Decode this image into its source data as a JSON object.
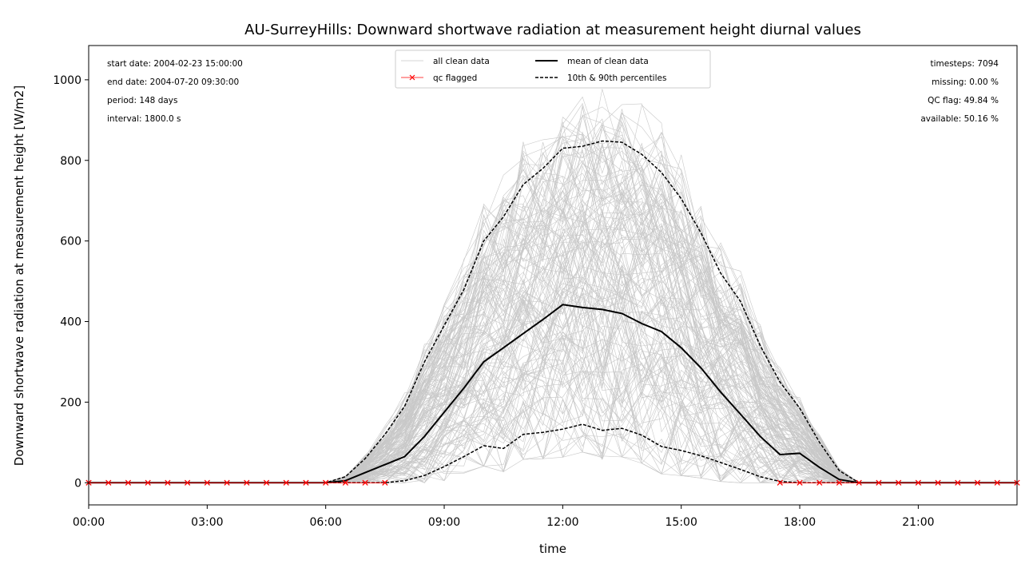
{
  "chart_data": {
    "type": "line",
    "title": "AU-SurreyHills: Downward shortwave radiation at measurement height diurnal values",
    "xlabel": "time",
    "ylabel": "Downward shortwave radiation at measurement height [W/m2]",
    "xlim": [
      0,
      23.5
    ],
    "ylim": [
      -55,
      1085
    ],
    "x_ticks": [
      0,
      3,
      6,
      9,
      12,
      15,
      18,
      21
    ],
    "x_tick_labels": [
      "00:00",
      "03:00",
      "06:00",
      "09:00",
      "12:00",
      "15:00",
      "18:00",
      "21:00"
    ],
    "y_ticks": [
      0,
      200,
      400,
      600,
      800,
      1000
    ],
    "y_tick_labels": [
      "0",
      "200",
      "400",
      "600",
      "800",
      "1000"
    ],
    "x": [
      0,
      0.5,
      1,
      1.5,
      2,
      2.5,
      3,
      3.5,
      4,
      4.5,
      5,
      5.5,
      6,
      6.5,
      7,
      7.5,
      8,
      8.5,
      9,
      9.5,
      10,
      10.5,
      11,
      11.5,
      12,
      12.5,
      13,
      13.5,
      14,
      14.5,
      15,
      15.5,
      16,
      16.5,
      17,
      17.5,
      18,
      18.5,
      19,
      19.5,
      20,
      20.5,
      21,
      21.5,
      22,
      22.5,
      23,
      23.5
    ],
    "series": [
      {
        "name": "mean of clean data",
        "color": "#000000",
        "style": "solid",
        "values": [
          0,
          0,
          0,
          0,
          0,
          0,
          0,
          0,
          0,
          0,
          0,
          0,
          0,
          5,
          25,
          45,
          65,
          115,
          175,
          235,
          300,
          335,
          370,
          405,
          442,
          435,
          430,
          420,
          395,
          375,
          335,
          285,
          225,
          170,
          115,
          70,
          73,
          38,
          8,
          0,
          0,
          0,
          0,
          0,
          0,
          0,
          0,
          0
        ]
      },
      {
        "name": "10th & 90th percentiles",
        "color": "#000000",
        "style": "dashed",
        "values": [
          0,
          0,
          0,
          0,
          0,
          0,
          0,
          0,
          0,
          0,
          0,
          0,
          0,
          0,
          0,
          0,
          5,
          18,
          40,
          65,
          92,
          85,
          120,
          125,
          133,
          145,
          130,
          135,
          118,
          90,
          80,
          67,
          50,
          33,
          15,
          3,
          0,
          0,
          0,
          0,
          0,
          0,
          0,
          0,
          0,
          0,
          0,
          0
        ]
      },
      {
        "name": "90th percentile",
        "color": "#000000",
        "style": "dashed",
        "values": [
          0,
          0,
          0,
          0,
          0,
          0,
          0,
          0,
          0,
          0,
          0,
          0,
          0,
          15,
          60,
          120,
          190,
          300,
          390,
          480,
          600,
          660,
          740,
          780,
          830,
          835,
          848,
          845,
          815,
          770,
          705,
          620,
          520,
          450,
          340,
          250,
          185,
          100,
          30,
          0,
          0,
          0,
          0,
          0,
          0,
          0,
          0,
          0
        ]
      },
      {
        "name": "qc flagged",
        "color": "#ff0000",
        "marker": "x",
        "x": [
          0,
          0.5,
          1,
          1.5,
          2,
          2.5,
          3,
          3.5,
          4,
          4.5,
          5,
          5.5,
          6,
          6.5,
          7,
          7.5,
          17.5,
          18,
          18.5,
          19,
          19.5,
          20,
          20.5,
          21,
          21.5,
          22,
          22.5,
          23,
          23.5
        ],
        "values": [
          0,
          0,
          0,
          0,
          0,
          0,
          0,
          0,
          0,
          0,
          0,
          0,
          0,
          0,
          0,
          0,
          0,
          0,
          0,
          0,
          0,
          0,
          0,
          0,
          0,
          0,
          0,
          0,
          0
        ]
      }
    ],
    "legend": {
      "placement": "top-center",
      "entries": [
        "all clean data",
        "qc flagged",
        "mean of clean data",
        "10th & 90th percentiles"
      ]
    },
    "background_series": {
      "name": "all clean data",
      "color": "#c8c8c8",
      "count": 148
    },
    "info_left": [
      "start date: 2004-02-23 15:00:00",
      "end date: 2004-07-20 09:30:00",
      "period: 148 days",
      "interval: 1800.0 s"
    ],
    "info_right": [
      "timesteps: 7094",
      "missing: 0.00 %",
      "QC flag: 49.84 %",
      "available: 50.16 %"
    ],
    "grid": false
  }
}
